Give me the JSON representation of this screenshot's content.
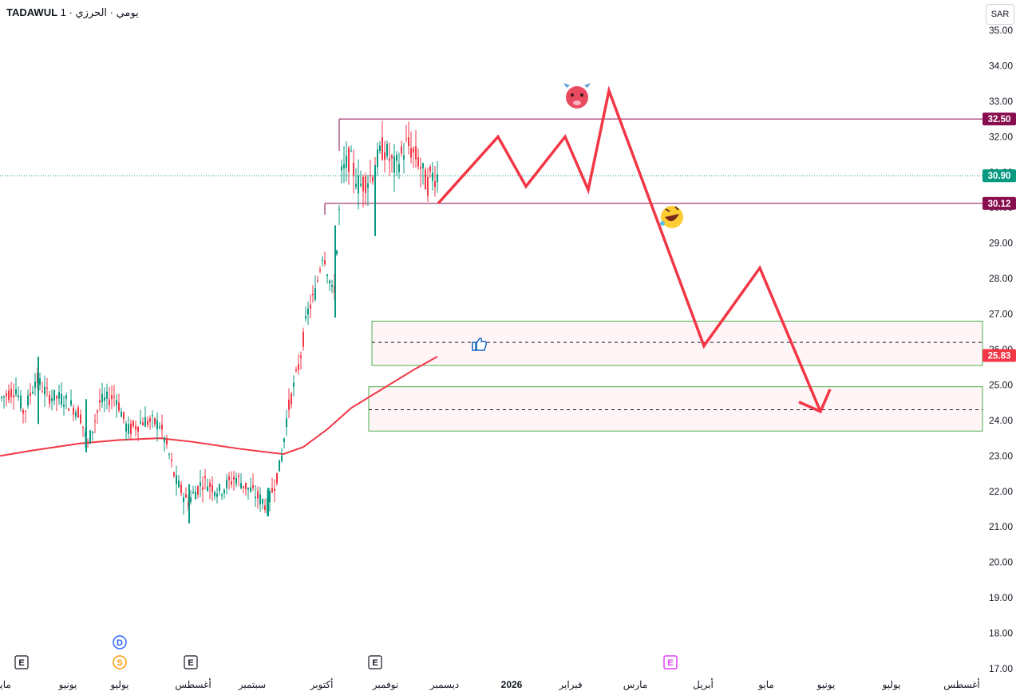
{
  "header": {
    "symbol": "TADAWUL",
    "subtitle": "يومي · الحرزي · 1"
  },
  "currency_button": "SAR",
  "colors": {
    "up": "#089981",
    "down": "#f23645",
    "ma": "#f23645",
    "drawing": "#f23645",
    "level": "#880e4f",
    "last": "#089981",
    "zone_border": "#4caf50",
    "zone_fill": "#fff5f7"
  },
  "chart_data": {
    "type": "candlestick",
    "y_axis": {
      "min": 17,
      "max": 35,
      "step": 1,
      "side": "right",
      "tick_labels": [
        "35.00",
        "34.00",
        "33.00",
        "32.00",
        "31.00",
        "30.00",
        "29.00",
        "28.00",
        "27.00",
        "26.00",
        "25.00",
        "24.00",
        "23.00",
        "22.00",
        "21.00",
        "20.00",
        "19.00",
        "18.00",
        "17.00"
      ]
    },
    "x_axis": {
      "labels": [
        "مايو",
        "يونيو",
        "يوليو",
        "أغسطس",
        "سبتمبر",
        "أكتوبر",
        "نوفمبر",
        "ديسمبر",
        "2026",
        "فبراير",
        "مارس",
        "أبريل",
        "مايو",
        "يونيو",
        "يوليو",
        "أغسطس"
      ]
    },
    "price_labels": [
      {
        "text": "32.50",
        "value": 32.5,
        "color": "#880e4f"
      },
      {
        "text": "30.90",
        "value": 30.9,
        "color": "#089981"
      },
      {
        "text": "30.12",
        "value": 30.12,
        "color": "#880e4f"
      },
      {
        "text": "25.83",
        "value": 25.83,
        "color": "#f23645"
      }
    ],
    "horizontal_levels": [
      32.5,
      30.12
    ],
    "last_price": 30.9,
    "zones": [
      {
        "top": 26.8,
        "bottom": 25.55,
        "mid": 26.2
      },
      {
        "top": 24.95,
        "bottom": 23.7,
        "mid": 24.3
      }
    ],
    "candles_sample": [
      {
        "date": "2025-05",
        "o": 24.5,
        "h": 25.0,
        "l": 23.6,
        "c": 24.6
      },
      {
        "date": "2025-06",
        "o": 24.8,
        "h": 25.9,
        "l": 23.1,
        "c": 24.2
      },
      {
        "date": "2025-07",
        "o": 24.3,
        "h": 25.1,
        "l": 23.4,
        "c": 24.0
      },
      {
        "date": "2025-08",
        "o": 23.5,
        "h": 23.6,
        "l": 21.1,
        "c": 22.0
      },
      {
        "date": "2025-09",
        "o": 22.0,
        "h": 22.7,
        "l": 21.2,
        "c": 22.0
      },
      {
        "date": "2025-10",
        "o": 22.5,
        "h": 31.9,
        "l": 22.3,
        "c": 30.5
      },
      {
        "date": "2025-11",
        "o": 30.5,
        "h": 32.3,
        "l": 29.2,
        "c": 31.0
      },
      {
        "date": "2025-12",
        "o": 31.0,
        "h": 32.2,
        "l": 30.0,
        "c": 30.9
      }
    ],
    "projection_path": [
      30.12,
      32.0,
      30.6,
      32.0,
      30.5,
      33.3,
      26.1,
      28.3,
      24.25
    ],
    "events": [
      {
        "label": "E"
      },
      {
        "label": "D"
      },
      {
        "label": "S"
      },
      {
        "label": "E"
      },
      {
        "label": "E"
      },
      {
        "label": "E"
      }
    ]
  }
}
